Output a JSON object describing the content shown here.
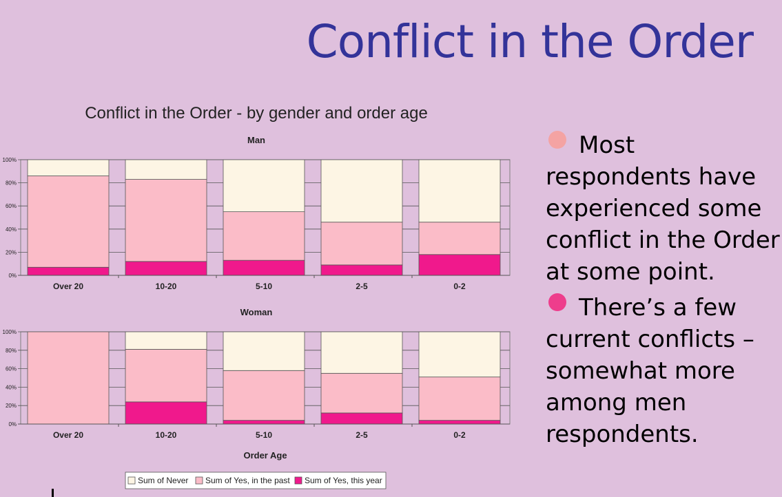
{
  "slide": {
    "title": "Conflict in the Order",
    "bullets": [
      {
        "text": "Most respondents have experienced some conflict in the Order at some point.",
        "dot_color": "#f4a3a3"
      },
      {
        "text": "There’s a few current conflicts – somewhat more among men respondents.",
        "dot_color": "#ee3d8c"
      }
    ]
  },
  "chart_data": {
    "type": "bar",
    "stacked": "percent",
    "title": "Conflict in the Order - by gender and order age",
    "xlabel": "Order Age",
    "ylim": [
      0,
      100
    ],
    "y_ticks": [
      "0%",
      "20%",
      "40%",
      "60%",
      "80%",
      "100%"
    ],
    "categories": [
      "Over 20",
      "10-20",
      "5-10",
      "2-5",
      "0-2"
    ],
    "legend_position": "bottom",
    "series_order": [
      "Sum of Never",
      "Sum of Yes, in the past",
      "Sum of Yes, this year"
    ],
    "colors": {
      "Sum of Never": "#fdf5e4",
      "Sum of Yes, in the past": "#fbbcc8",
      "Sum of Yes, this year": "#f0198c"
    },
    "panels": [
      {
        "title": "Man",
        "series": [
          {
            "name": "Sum of Yes, this year",
            "values": [
              7,
              12,
              13,
              9,
              18
            ]
          },
          {
            "name": "Sum of Yes, in the past",
            "values": [
              79,
              71,
              42,
              37,
              28
            ]
          },
          {
            "name": "Sum of Never",
            "values": [
              14,
              17,
              45,
              54,
              54
            ]
          }
        ]
      },
      {
        "title": "Woman",
        "series": [
          {
            "name": "Sum of Yes, this year",
            "values": [
              0,
              24,
              4,
              12,
              4
            ]
          },
          {
            "name": "Sum of Yes, in the past",
            "values": [
              100,
              57,
              54,
              43,
              47
            ]
          },
          {
            "name": "Sum of Never",
            "values": [
              0,
              19,
              42,
              45,
              49
            ]
          }
        ]
      }
    ]
  }
}
